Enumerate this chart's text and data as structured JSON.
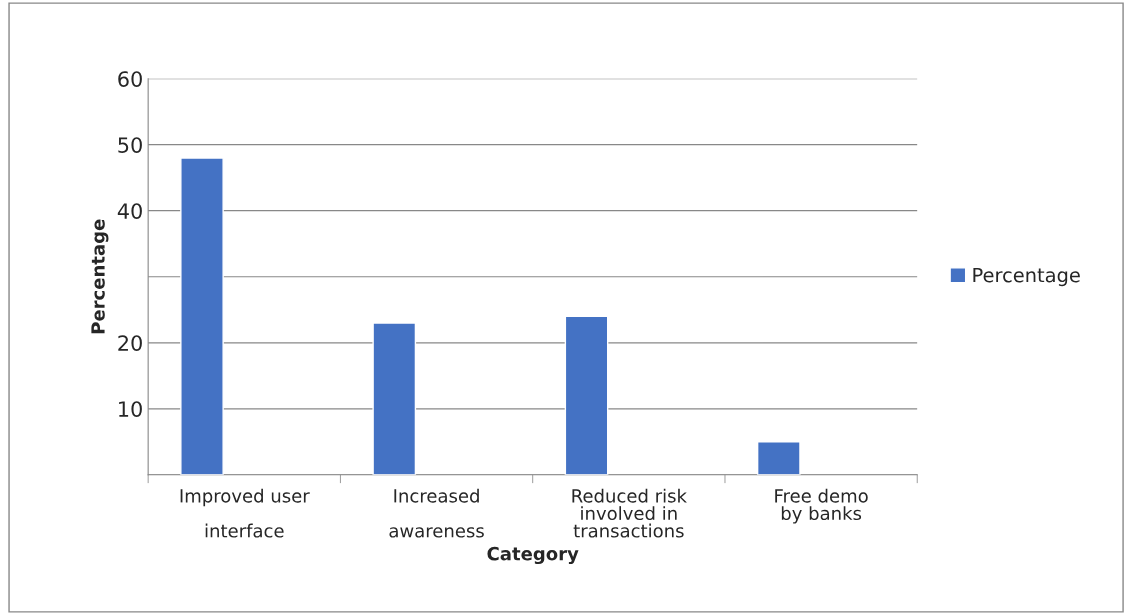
{
  "chart_data": {
    "type": "bar",
    "xlabel": "Category",
    "ylabel": "Percentage",
    "categories": [
      "Improved user\n\ninterface",
      "Increased\n\nawareness",
      "Reduced risk\ninvolved in\ntransactions",
      "Free demo\nby banks"
    ],
    "series": [
      {
        "name": "Percentage",
        "color": "#4472c4",
        "values": [
          48,
          23,
          24,
          5
        ]
      }
    ],
    "ylim": [
      0,
      60
    ],
    "yticks": [
      {
        "value": 0,
        "label": null
      },
      10,
      20,
      {
        "value": 30,
        "label": null
      },
      40,
      50,
      60
    ],
    "grid": "y",
    "legend": "right"
  }
}
